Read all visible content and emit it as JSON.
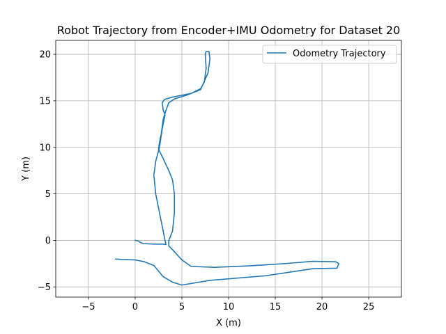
{
  "chart_data": {
    "type": "line",
    "title": "Robot Trajectory from Encoder+IMU Odometry for Dataset 20",
    "xlabel": "X (m)",
    "ylabel": "Y (m)",
    "xlim": [
      -8.5,
      28.5
    ],
    "ylim": [
      -6.1,
      21.5
    ],
    "xticks": [
      -5,
      0,
      5,
      10,
      15,
      20,
      25
    ],
    "yticks": [
      -5,
      0,
      5,
      10,
      15,
      20
    ],
    "grid": true,
    "legend_position": "upper right",
    "series_color": "#1f77b4",
    "series": [
      {
        "name": "Odometry Trajectory",
        "x": [
          0.0,
          0.3,
          0.6,
          0.9,
          2.0,
          3.0,
          3.3,
          3.2,
          3.0,
          2.8,
          2.5,
          2.2,
          2.0,
          2.2,
          2.6,
          2.9,
          3.2,
          3.0,
          2.9,
          3.1,
          3.3,
          4.0,
          6.0,
          7.0,
          7.4,
          7.6,
          7.5,
          7.6,
          7.9,
          8.0,
          7.8,
          7.0,
          5.5,
          4.2,
          3.6,
          3.3,
          3.0,
          2.8,
          2.6,
          2.5,
          2.9,
          3.6,
          4.0,
          4.2,
          4.2,
          4.0,
          3.6,
          3.6,
          4.0,
          5.0,
          6.0,
          8.5,
          12.0,
          16.0,
          19.0,
          21.5,
          21.8,
          21.6,
          21.0,
          19.0,
          14.0,
          8.0,
          5.0,
          4.0,
          3.0,
          2.0,
          1.0,
          0.0,
          -1.5,
          -2.1
        ],
        "y": [
          0.0,
          -0.05,
          -0.25,
          -0.35,
          -0.4,
          -0.4,
          -0.45,
          0.0,
          1.0,
          2.0,
          3.5,
          5.0,
          7.0,
          8.5,
          10.0,
          12.0,
          13.5,
          14.0,
          14.8,
          15.1,
          15.2,
          15.4,
          15.8,
          16.3,
          17.0,
          18.5,
          20.0,
          20.3,
          20.3,
          19.5,
          18.0,
          16.2,
          15.6,
          15.2,
          14.8,
          14.0,
          13.0,
          11.5,
          10.5,
          9.8,
          9.0,
          7.5,
          6.5,
          5.0,
          3.0,
          1.0,
          0.0,
          -0.6,
          -1.0,
          -2.1,
          -2.8,
          -2.9,
          -2.75,
          -2.5,
          -2.25,
          -2.3,
          -2.5,
          -3.0,
          -3.0,
          -3.05,
          -3.8,
          -4.3,
          -4.8,
          -4.5,
          -3.9,
          -2.7,
          -2.3,
          -2.1,
          -2.05,
          -2.0
        ]
      }
    ]
  }
}
